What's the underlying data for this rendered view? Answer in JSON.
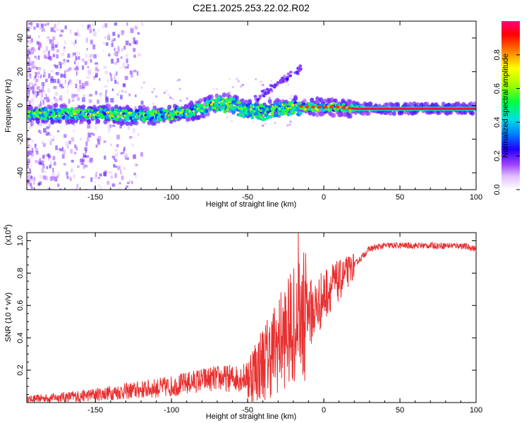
{
  "title": "C2E1.2025.253.22.02.R02",
  "chart_data": [
    {
      "type": "heatmap",
      "title": "C2E1.2025.253.22.02.R02",
      "xlabel": "Height of straight line (km)",
      "ylabel": "Frequency (Hz)",
      "xlim": [
        -195,
        100
      ],
      "ylim": [
        -50,
        50
      ],
      "xticks": [
        -150,
        -100,
        -50,
        0,
        50,
        100
      ],
      "yticks": [
        -40,
        -20,
        0,
        20,
        40
      ],
      "colorbar": {
        "label": "Normalized spectral amplitude",
        "range": [
          0,
          1
        ],
        "ticks": [
          "0.0",
          "0.2",
          "0.4",
          "0.6",
          "0.8"
        ],
        "colormap": [
          "#ffffff",
          "#c080ff",
          "#8000ff",
          "#0000ff",
          "#00c0ff",
          "#00ff80",
          "#80ff00",
          "#ffff00",
          "#ff8000",
          "#ff0000",
          "#ff0080"
        ]
      },
      "ridge": {
        "x": [
          -195,
          -170,
          -150,
          -130,
          -110,
          -100,
          -90,
          -80,
          -70,
          -60,
          -50,
          -40,
          -30,
          -20,
          -10,
          0,
          10,
          20,
          30,
          50,
          70,
          90,
          100
        ],
        "y": [
          -5,
          -5,
          -5,
          -6,
          -6,
          -5,
          -4,
          -2,
          2,
          1,
          -2,
          -3,
          -1,
          0,
          -1,
          -1,
          -1,
          -2,
          -2,
          -2,
          -2,
          -2,
          -2
        ]
      }
    },
    {
      "type": "line",
      "xlabel": "Height of straight line (km)",
      "ylabel": "SNR (10 * v/v)",
      "yscale_label": "(x10",
      "yscale_exp": "4",
      "yscale_close": ")",
      "xlim": [
        -195,
        100
      ],
      "ylim": [
        0,
        1.05
      ],
      "xticks": [
        -150,
        -100,
        -50,
        0,
        50,
        100
      ],
      "yticks": [
        0.2,
        0.4,
        0.6,
        0.8,
        1.0
      ],
      "ytick_labels": [
        "0.2",
        "0.4",
        "0.6",
        "0.8",
        "1.0"
      ],
      "color": "#e83030",
      "series": [
        {
          "name": "SNR",
          "x": [
            -195,
            -180,
            -160,
            -140,
            -120,
            -100,
            -90,
            -80,
            -70,
            -60,
            -50,
            -45,
            -40,
            -35,
            -30,
            -25,
            -20,
            -15,
            -10,
            -5,
            0,
            5,
            10,
            15,
            20,
            25,
            30,
            40,
            50,
            60,
            70,
            80,
            90,
            100
          ],
          "y": [
            0.02,
            0.03,
            0.04,
            0.06,
            0.08,
            0.1,
            0.12,
            0.14,
            0.15,
            0.15,
            0.16,
            0.2,
            0.25,
            0.3,
            0.36,
            0.42,
            0.46,
            0.52,
            0.55,
            0.58,
            0.66,
            0.72,
            0.75,
            0.8,
            0.85,
            0.9,
            0.95,
            0.97,
            0.97,
            0.97,
            0.97,
            0.97,
            0.97,
            0.95
          ]
        }
      ]
    }
  ]
}
